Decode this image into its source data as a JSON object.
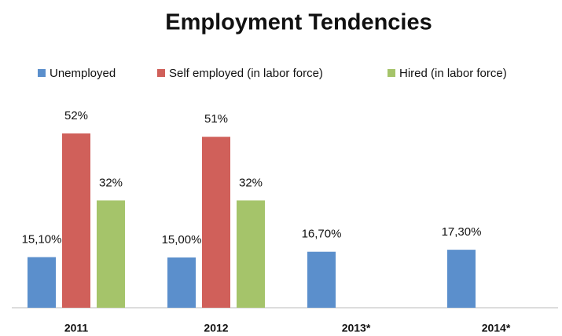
{
  "chart_data": {
    "type": "bar",
    "title": "Employment Tendencies",
    "categories": [
      "2011",
      "2012",
      "2013*",
      "2014*"
    ],
    "series": [
      {
        "name": "Unemployed",
        "color": "#5b8fcc",
        "values": [
          15.1,
          15.0,
          16.7,
          17.3
        ],
        "value_labels": [
          "15,10%",
          "15,00%",
          "16,70%",
          "17,30%"
        ]
      },
      {
        "name": "Self employed (in labor force)",
        "color": "#d0605a",
        "values": [
          52,
          51,
          null,
          null
        ],
        "value_labels": [
          "52%",
          "51%",
          null,
          null
        ]
      },
      {
        "name": "Hired (in labor force)",
        "color": "#a5c46a",
        "values": [
          32,
          32,
          null,
          null
        ],
        "value_labels": [
          "32%",
          "32%",
          null,
          null
        ]
      }
    ],
    "legend": "top"
  }
}
